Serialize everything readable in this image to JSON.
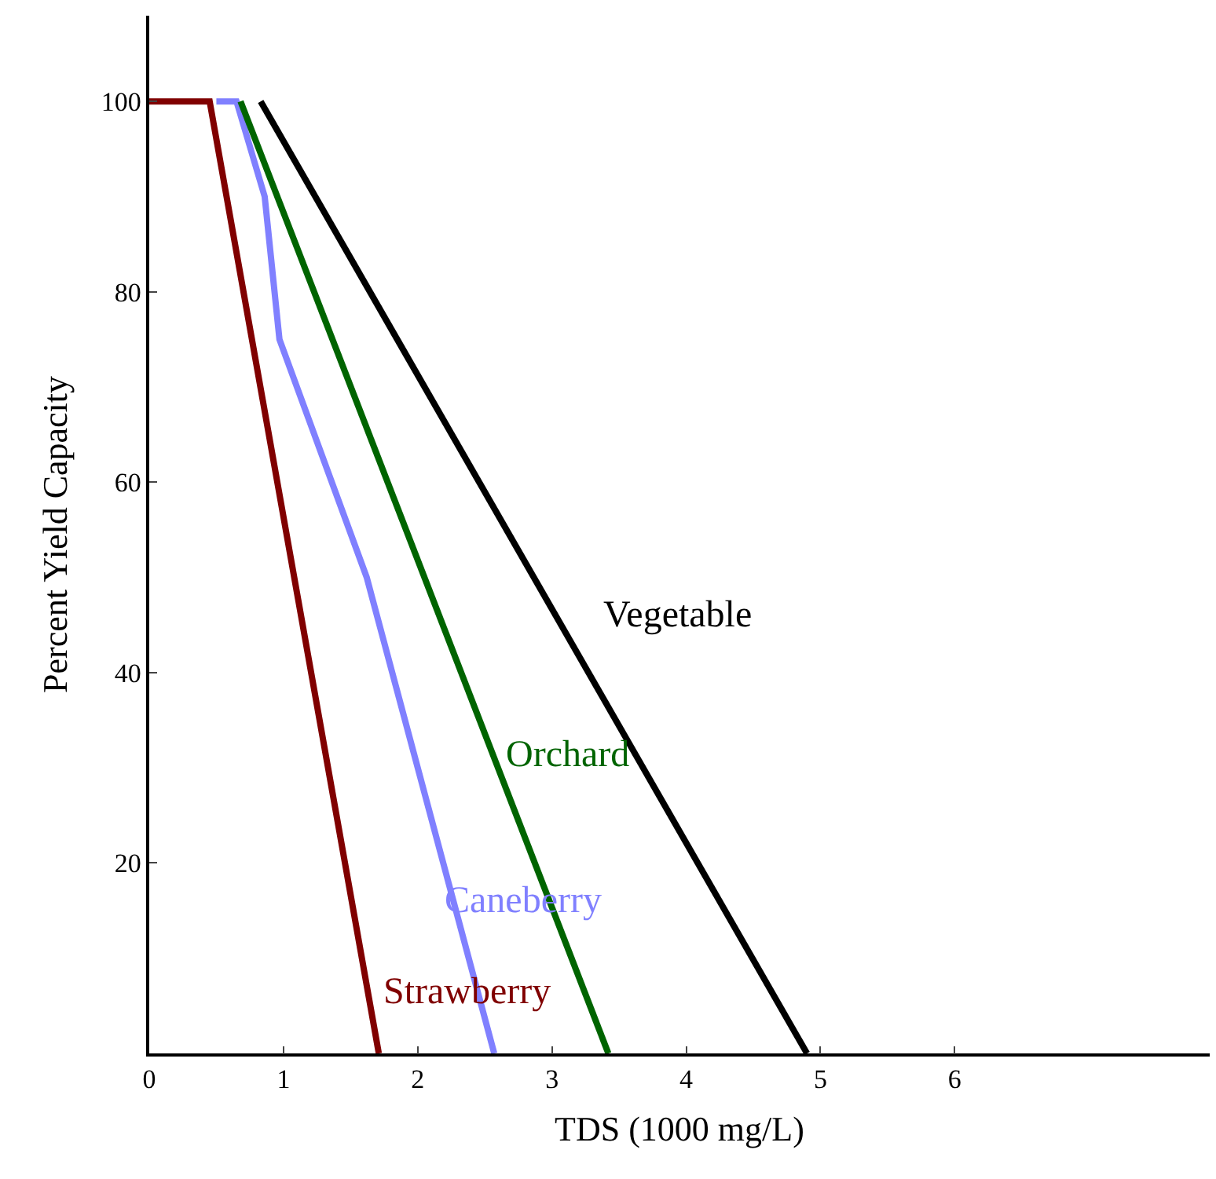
{
  "chart_data": {
    "type": "line",
    "xlabel": "TDS (1000 mg/L)",
    "ylabel": "Percent Yield Capacity",
    "xlim": [
      0,
      7.9
    ],
    "ylim": [
      0,
      109
    ],
    "xticks": [
      {
        "value": 0,
        "label": "0"
      },
      1,
      2,
      3,
      4,
      5,
      6
    ],
    "yticks": [
      {
        "value": 0,
        "label": null
      },
      20,
      40,
      60,
      80,
      100
    ],
    "legend": false,
    "marker": "none",
    "line_style": "solid",
    "series": [
      {
        "name": "Strawberry",
        "color": "#800000",
        "x": [
          0,
          0.45,
          1.71
        ],
        "values": [
          100,
          100,
          0
        ]
      },
      {
        "name": "Caneberry",
        "color": "#8080ff",
        "x": [
          0.5,
          0.65,
          0.86,
          0.97,
          1.62,
          2.57
        ],
        "values": [
          100,
          100,
          90,
          75,
          50,
          0
        ]
      },
      {
        "name": "Orchard",
        "color": "#006400",
        "x": [
          0.68,
          3.42
        ],
        "values": [
          100,
          0
        ]
      },
      {
        "name": "Vegetable",
        "color": "#000000",
        "x": [
          0.83,
          0.83,
          4.9
        ],
        "values": [
          100,
          100,
          0
        ]
      }
    ]
  }
}
